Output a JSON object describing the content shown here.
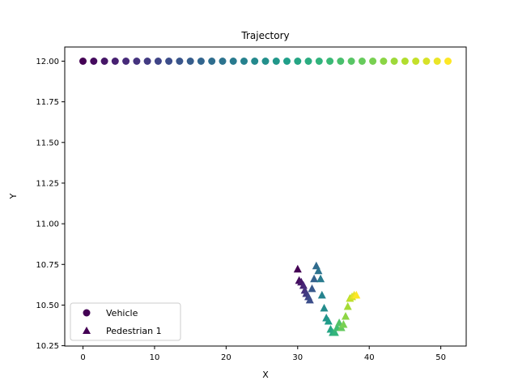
{
  "chart_data": {
    "type": "scatter",
    "title": "Trajectory",
    "xlabel": "X",
    "ylabel": "Y",
    "xlim": [
      -2.55,
      53.55
    ],
    "ylim": [
      10.248,
      12.087
    ],
    "xticks": [
      0,
      10,
      20,
      30,
      40,
      50
    ],
    "yticks": [
      10.25,
      10.5,
      10.75,
      11.0,
      11.25,
      11.5,
      11.75,
      12.0
    ],
    "ytick_labels": [
      "10.25",
      "10.50",
      "10.75",
      "11.00",
      "11.25",
      "11.50",
      "11.75",
      "12.00"
    ],
    "colormap": "viridis",
    "grid": false,
    "legend_position": "lower-left",
    "series": [
      {
        "name": "Vehicle",
        "marker": "circle",
        "x": [
          0,
          1.5,
          3,
          4.5,
          6,
          7.5,
          9,
          10.5,
          12,
          13.5,
          15,
          16.5,
          18,
          19.5,
          21,
          22.5,
          24,
          25.5,
          27,
          28.5,
          30,
          31.5,
          33,
          34.5,
          36,
          37.5,
          39,
          40.5,
          42,
          43.5,
          45,
          46.5,
          48,
          49.5,
          51
        ],
        "y": [
          12,
          12,
          12,
          12,
          12,
          12,
          12,
          12,
          12,
          12,
          12,
          12,
          12,
          12,
          12,
          12,
          12,
          12,
          12,
          12,
          12,
          12,
          12,
          12,
          12,
          12,
          12,
          12,
          12,
          12,
          12,
          12,
          12,
          12,
          12
        ]
      },
      {
        "name": "Pedestrian 1",
        "marker": "triangle",
        "x": [
          30.0,
          30.2,
          30.5,
          30.8,
          31.0,
          31.2,
          31.5,
          31.7,
          32.0,
          32.3,
          32.6,
          32.9,
          33.2,
          33.4,
          33.7,
          34.0,
          34.3,
          34.6,
          34.9,
          35.2,
          35.5,
          35.8,
          36.1,
          36.4,
          36.7,
          37.0,
          37.3,
          37.6,
          37.9,
          38.2
        ],
        "y": [
          10.72,
          10.65,
          10.64,
          10.62,
          10.59,
          10.57,
          10.55,
          10.53,
          10.6,
          10.66,
          10.74,
          10.71,
          10.66,
          10.56,
          10.48,
          10.42,
          10.4,
          10.35,
          10.33,
          10.33,
          10.36,
          10.39,
          10.36,
          10.38,
          10.43,
          10.49,
          10.54,
          10.55,
          10.56,
          10.56
        ]
      }
    ]
  }
}
